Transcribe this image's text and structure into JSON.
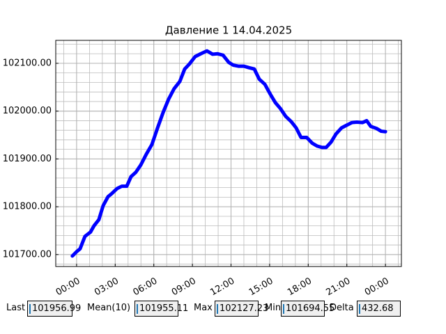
{
  "chart_data": {
    "type": "line",
    "title": "Давление 1 14.04.2025",
    "x": [
      -0.33,
      0,
      0.27,
      0.65,
      1.08,
      1.35,
      1.73,
      2.06,
      2.44,
      2.71,
      3.14,
      3.52,
      3.9,
      4.23,
      4.6,
      4.98,
      5.42,
      5.85,
      6.28,
      6.72,
      7.15,
      7.58,
      8.02,
      8.4,
      8.78,
      9.21,
      9.65,
      10.13,
      10.57,
      10.95,
      11.38,
      11.82,
      12.19,
      12.57,
      13,
      13.38,
      13.81,
      14.19,
      14.63,
      15.06,
      15.44,
      15.82,
      16.25,
      16.68,
      17.06,
      17.44,
      17.88,
      18.31,
      18.69,
      19.07,
      19.39,
      19.77,
      20.15,
      20.59,
      21.02,
      21.4,
      21.78,
      22.21,
      22.54,
      22.86,
      23.29,
      23.67,
      24
    ],
    "series": [
      {
        "name": "Давление 1",
        "color": "#0000ff",
        "values": [
          101697,
          101706,
          101712,
          101738,
          101747,
          101760,
          101773,
          101802,
          101821,
          101827,
          101838,
          101843,
          101843,
          101863,
          101872,
          101887,
          101910,
          101930,
          101964,
          101997,
          102025,
          102047,
          102062,
          102088,
          102099,
          102114,
          102120,
          102126,
          102119,
          102120,
          102117,
          102102,
          102096,
          102094,
          102094,
          102091,
          102088,
          102067,
          102056,
          102035,
          102018,
          102006,
          101989,
          101978,
          101965,
          101945,
          101945,
          101933,
          101927,
          101924,
          101924,
          101935,
          101952,
          101965,
          101971,
          101976,
          101977,
          101976,
          101980,
          101968,
          101964,
          101958,
          101957
        ]
      }
    ],
    "xlim": [
      -1.62,
      25.24
    ],
    "ylim": [
      101675,
      102148
    ],
    "xticks": [
      {
        "value": 0,
        "label": "00:00"
      },
      {
        "value": 3,
        "label": "03:00"
      },
      {
        "value": 6,
        "label": "06:00"
      },
      {
        "value": 9,
        "label": "09:00"
      },
      {
        "value": 12,
        "label": "12:00"
      },
      {
        "value": 15,
        "label": "15:00"
      },
      {
        "value": 18,
        "label": "18:00"
      },
      {
        "value": 21,
        "label": "21:00"
      },
      {
        "value": 24,
        "label": "00:00"
      }
    ],
    "yticks": [
      {
        "value": 101700,
        "label": "101700.00"
      },
      {
        "value": 101800,
        "label": "101800.00"
      },
      {
        "value": 101900,
        "label": "101900.00"
      },
      {
        "value": 102000,
        "label": "102000.00"
      },
      {
        "value": 102100,
        "label": "102100.00"
      }
    ],
    "grid": true
  },
  "widgets": [
    {
      "label": "Last",
      "value": "101956.99"
    },
    {
      "label": "Mean(10)",
      "value": "101955.11"
    },
    {
      "label": "Max",
      "value": "102127.23"
    },
    {
      "label": "Min",
      "value": "101694.55"
    },
    {
      "label": "Delta",
      "value": "432.68"
    }
  ]
}
